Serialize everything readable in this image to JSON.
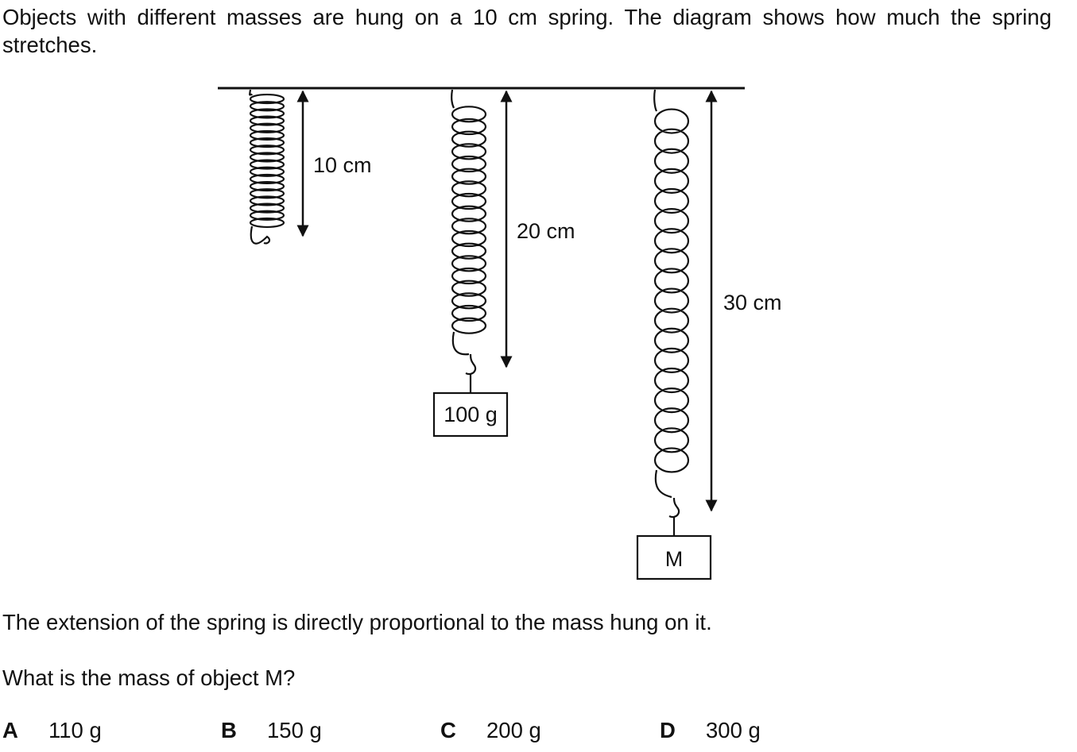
{
  "intro": "Objects with different masses are hung on a 10 cm spring. The diagram shows how much the spring stretches.",
  "diagram": {
    "springs": [
      {
        "length_label": "10 cm",
        "mass_label": ""
      },
      {
        "length_label": "20 cm",
        "mass_label": "100 g"
      },
      {
        "length_label": "30 cm",
        "mass_label": "M"
      }
    ]
  },
  "statement": "The extension of the spring is directly proportional to the mass hung on it.",
  "question": "What is the mass of object M?",
  "options": [
    {
      "letter": "A",
      "value": "110 g"
    },
    {
      "letter": "B",
      "value": "150 g"
    },
    {
      "letter": "C",
      "value": "200 g"
    },
    {
      "letter": "D",
      "value": "300 g"
    }
  ]
}
